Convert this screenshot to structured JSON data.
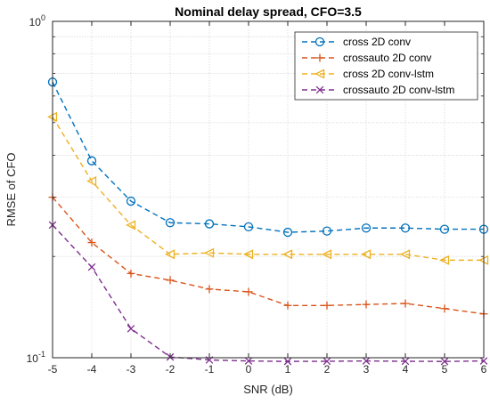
{
  "chart_data": {
    "type": "line",
    "title": "Nominal delay spread, CFO=3.5",
    "xlabel": "SNR (dB)",
    "ylabel": "RMSE of CFO",
    "x": [
      -5,
      -4,
      -3,
      -2,
      -1,
      0,
      1,
      2,
      3,
      4,
      5,
      6
    ],
    "x_tick_labels": [
      "-5",
      "-4",
      "-3",
      "-2",
      "-1",
      "0",
      "1",
      "2",
      "3",
      "4",
      "5",
      "6"
    ],
    "xlim": [
      -5,
      6
    ],
    "yscale": "log",
    "ylim": [
      0.1,
      1
    ],
    "y_tick_labels": [
      {
        "value": 1,
        "base": "10",
        "exp": "0"
      },
      {
        "value": 0.1,
        "base": "10",
        "exp": "-1"
      }
    ],
    "grid": true,
    "legend_position": "top-right",
    "series": [
      {
        "name": "cross 2D conv",
        "color": "#0072BD",
        "marker": "circle",
        "values": [
          0.66,
          0.385,
          0.292,
          0.252,
          0.25,
          0.245,
          0.236,
          0.238,
          0.243,
          0.243,
          0.241,
          0.241
        ]
      },
      {
        "name": "crossauto 2D conv",
        "color": "#D95319",
        "marker": "plus",
        "values": [
          0.3,
          0.22,
          0.178,
          0.17,
          0.16,
          0.157,
          0.143,
          0.143,
          0.144,
          0.145,
          0.14,
          0.135
        ]
      },
      {
        "name": "cross 2D conv-lstm",
        "color": "#EDB120",
        "marker": "triangle-left",
        "values": [
          0.52,
          0.335,
          0.248,
          0.203,
          0.205,
          0.203,
          0.203,
          0.203,
          0.203,
          0.203,
          0.195,
          0.195
        ]
      },
      {
        "name": "crossauto 2D conv-lstm",
        "color": "#7E2F8E",
        "marker": "x",
        "values": [
          0.248,
          0.186,
          0.122,
          0.1005,
          0.0985,
          0.0978,
          0.0975,
          0.0976,
          0.0978,
          0.0976,
          0.0975,
          0.0978
        ]
      }
    ]
  }
}
